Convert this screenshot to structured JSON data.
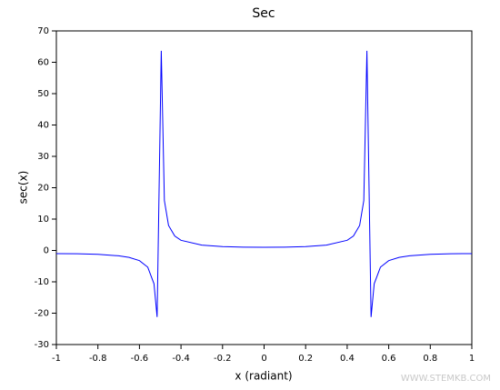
{
  "chart_data": {
    "type": "line",
    "title": "Sec",
    "x_label": "x (radiant)",
    "y_label": "sec(x)",
    "watermark": "WWW.STEMKB.COM",
    "x": [
      -1,
      -0.9,
      -0.8,
      -0.7,
      -0.65,
      -0.6,
      -0.56,
      -0.53,
      -0.515,
      -0.495,
      -0.48,
      -0.46,
      -0.43,
      -0.4,
      -0.3,
      -0.2,
      -0.1,
      0,
      0.1,
      0.2,
      0.3,
      0.4,
      0.43,
      0.46,
      0.48,
      0.495,
      0.515,
      0.53,
      0.56,
      0.6,
      0.65,
      0.7,
      0.8,
      0.9,
      1
    ],
    "values": [
      -1,
      -1.05,
      -1.24,
      -1.7,
      -2.2,
      -3.24,
      -5.34,
      -10.63,
      -21.22,
      63.66,
      15.92,
      7.98,
      4.59,
      3.24,
      1.7,
      1.24,
      1.05,
      1,
      1.05,
      1.24,
      1.7,
      3.24,
      4.59,
      7.98,
      15.92,
      63.66,
      -21.22,
      -10.63,
      -5.34,
      -3.24,
      -2.2,
      -1.7,
      -1.24,
      -1.05,
      -1
    ],
    "color": "#0000ff",
    "xlim": [
      -1,
      1
    ],
    "xticks": [
      -1,
      -0.8,
      -0.6,
      -0.4,
      -0.2,
      0,
      0.2,
      0.4,
      0.6,
      0.8,
      1
    ],
    "ylim": [
      -30,
      70
    ],
    "yticks": [
      -30,
      -20,
      -10,
      0,
      10,
      20,
      30,
      40,
      50,
      60,
      70
    ]
  }
}
